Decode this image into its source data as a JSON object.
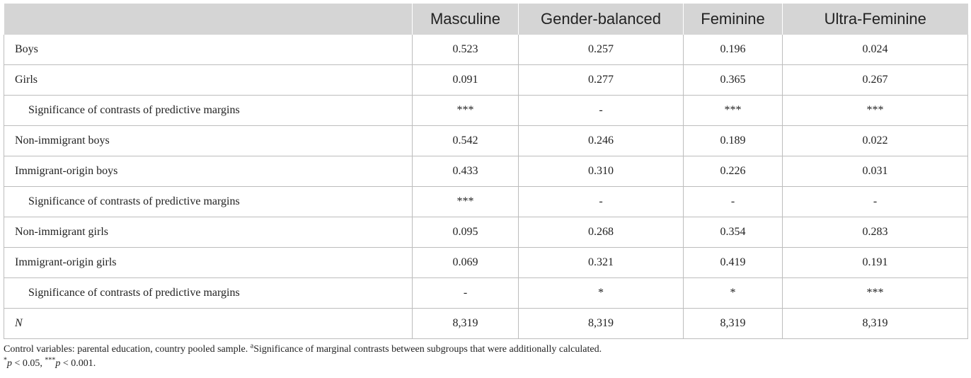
{
  "table": {
    "columns": [
      "",
      "Masculine",
      "Gender-balanced",
      "Feminine",
      "Ultra-Feminine"
    ],
    "rows": [
      {
        "label": "Boys",
        "values": [
          "0.523",
          "0.257",
          "0.196",
          "0.024"
        ]
      },
      {
        "label": "Girls",
        "values": [
          "0.091",
          "0.277",
          "0.365",
          "0.267"
        ]
      },
      {
        "label": "Significance of contrasts of predictive margins",
        "values": [
          "***",
          "-",
          "***",
          "***"
        ]
      },
      {
        "label": "Non-immigrant boys",
        "values": [
          "0.542",
          "0.246",
          "0.189",
          "0.022"
        ]
      },
      {
        "label": "Immigrant-origin boys",
        "values": [
          "0.433",
          "0.310",
          "0.226",
          "0.031"
        ]
      },
      {
        "label": "Significance of contrasts of predictive margins",
        "values": [
          "***",
          "-",
          "-",
          "-"
        ]
      },
      {
        "label": "Non-immigrant girls",
        "values": [
          "0.095",
          "0.268",
          "0.354",
          "0.283"
        ]
      },
      {
        "label": "Immigrant-origin girls",
        "values": [
          "0.069",
          "0.321",
          "0.419",
          "0.191"
        ]
      },
      {
        "label": "Significance of contrasts of predictive margins",
        "values": [
          "-",
          "*",
          "*",
          "***"
        ]
      },
      {
        "label": "N",
        "values": [
          "8,319",
          "8,319",
          "8,319",
          "8,319"
        ]
      }
    ]
  },
  "footnotes": {
    "line1_text": "Control variables: parental education, country pooled sample. ",
    "line1_sup": "a",
    "line1_text2": "Significance of marginal contrasts between subgroups that were additionally calculated.",
    "line2_sup1": "*",
    "line2_p1": "p",
    "line2_t1": " < 0.05, ",
    "line2_sup2": "***",
    "line2_p2": "p",
    "line2_t2": " < 0.001."
  },
  "colors": {
    "header_background": "#d5d5d5",
    "grid_lines": "#bdbdbd",
    "text": "#222222"
  }
}
